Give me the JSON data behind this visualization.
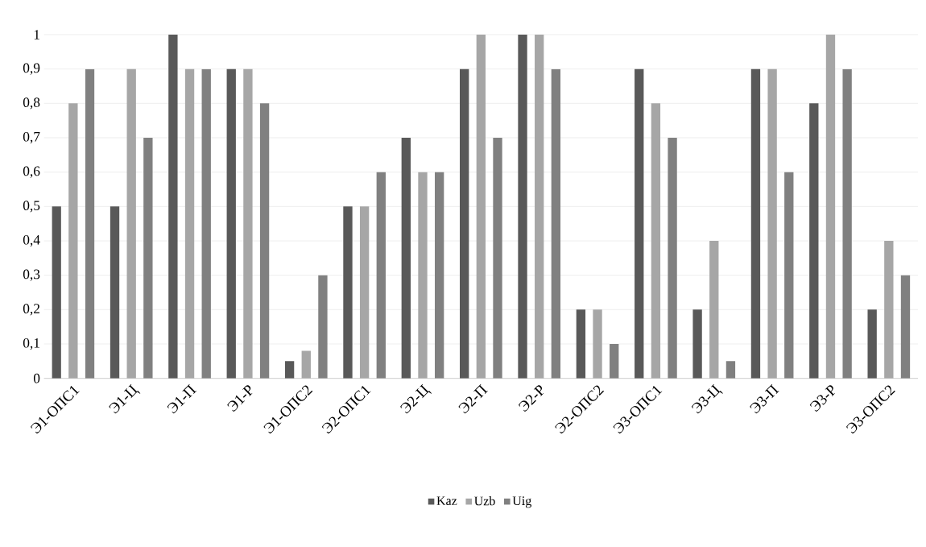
{
  "chart_data": {
    "type": "bar",
    "categories": [
      "Э1-ОПС1",
      "Э1-Ц",
      "Э1-П",
      "Э1-Р",
      "Э1-ОПС2",
      "Э2-ОПС1",
      "Э2-Ц",
      "Э2-П",
      "Э2-Р",
      "Э2-ОПС2",
      "Э3-ОПС1",
      "Э3-Ц",
      "Э3-П",
      "Э3-Р",
      "Э3-ОПС2"
    ],
    "series": [
      {
        "name": "Kaz",
        "color": "#595959",
        "values": [
          0.5,
          0.5,
          1,
          0.9,
          0.05,
          0.5,
          0.7,
          0.9,
          1,
          0.2,
          0.9,
          0.2,
          0.9,
          0.8,
          0.2
        ]
      },
      {
        "name": "Uzb",
        "color": "#a6a6a6",
        "values": [
          0.8,
          0.9,
          0.9,
          0.9,
          0.08,
          0.5,
          0.6,
          1,
          1,
          0.2,
          0.8,
          0.4,
          0.9,
          1,
          0.4
        ]
      },
      {
        "name": "Uig",
        "color": "#808080",
        "values": [
          0.9,
          0.7,
          0.9,
          0.8,
          0.3,
          0.6,
          0.6,
          0.7,
          0.9,
          0.1,
          0.7,
          0.05,
          0.6,
          0.9,
          0.3
        ]
      }
    ],
    "ylim": [
      0,
      1
    ],
    "yticks": [
      0,
      {
        "value": 0.1,
        "label": "0,1"
      },
      {
        "value": 0.2,
        "label": "0,2"
      },
      {
        "value": 0.3,
        "label": "0,3"
      },
      {
        "value": 0.4,
        "label": "0,4"
      },
      {
        "value": 0.5,
        "label": "0,5"
      },
      {
        "value": 0.6,
        "label": "0,6"
      },
      {
        "value": 0.7,
        "label": "0,7"
      },
      {
        "value": 0.8,
        "label": "0,8"
      },
      {
        "value": 0.9,
        "label": "0,9"
      },
      1
    ],
    "grid": "y",
    "legend": "bottom"
  }
}
